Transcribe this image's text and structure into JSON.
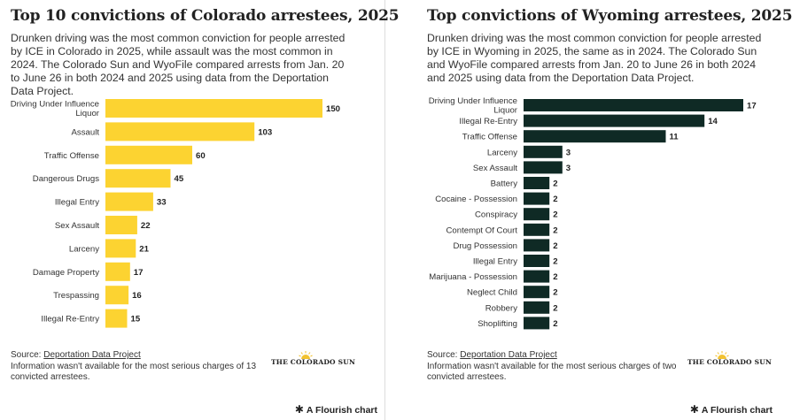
{
  "colorado": {
    "title": "Top 10 convictions of Colorado arrestees, 2025",
    "subtitle": "Drunken driving was the most common conviction for people arrested by ICE in Colorado in 2025, while assault was the most common in 2024. The Colorado Sun and WyoFile compared arrests from Jan. 20 to June 26 in both 2024 and 2025 using data from the Deportation Data Project.",
    "source_prefix": "Source: ",
    "source_link": "Deportation Data Project",
    "note": "Information wasn't available for the most serious charges of 13 convicted arrestees.",
    "logo": "THE COLORADO SUN",
    "flourish": "A Flourish chart",
    "star_icon": "✱"
  },
  "wyoming": {
    "title": "Top convictions of Wyoming arrestees, 2025",
    "subtitle": "Drunken driving was the most common conviction for people arrested by ICE in Wyoming in 2025, the same as in 2024. The Colorado Sun and WyoFile compared arrests from Jan. 20 to June 26 in both 2024 and 2025 using data from the Deportation Data Project.",
    "source_prefix": "Source: ",
    "source_link": "Deportation Data Project",
    "note": "Information wasn't available for the most serious charges of two convicted arrestees.",
    "logo": "THE COLORADO SUN",
    "flourish": "A Flourish chart",
    "star_icon": "✱"
  },
  "chart_data": [
    {
      "type": "bar",
      "orientation": "horizontal",
      "title": "Top 10 convictions of Colorado arrestees, 2025",
      "color": "#fcd331",
      "categories": [
        [
          "Driving Under Influence",
          "Liquor"
        ],
        [
          "Assault"
        ],
        [
          "Traffic Offense"
        ],
        [
          "Dangerous Drugs"
        ],
        [
          "Illegal Entry"
        ],
        [
          "Sex Assault"
        ],
        [
          "Larceny"
        ],
        [
          "Damage Property"
        ],
        [
          "Trespassing"
        ],
        [
          "Illegal Re-Entry"
        ]
      ],
      "values": [
        150,
        103,
        60,
        45,
        33,
        22,
        21,
        17,
        16,
        15
      ],
      "xlim": [
        0,
        150
      ]
    },
    {
      "type": "bar",
      "orientation": "horizontal",
      "title": "Top convictions of Wyoming arrestees, 2025",
      "color": "#0f2a25",
      "categories": [
        [
          "Driving Under Influence",
          "Liquor"
        ],
        [
          "Illegal Re-Entry"
        ],
        [
          "Traffic Offense"
        ],
        [
          "Larceny"
        ],
        [
          "Sex Assault"
        ],
        [
          "Battery"
        ],
        [
          "Cocaine - Possession"
        ],
        [
          "Conspiracy"
        ],
        [
          "Contempt Of Court"
        ],
        [
          "Drug Possession"
        ],
        [
          "Illegal Entry"
        ],
        [
          "Marijuana - Possession"
        ],
        [
          "Neglect Child"
        ],
        [
          "Robbery"
        ],
        [
          "Shoplifting"
        ]
      ],
      "values": [
        17,
        14,
        11,
        3,
        3,
        2,
        2,
        2,
        2,
        2,
        2,
        2,
        2,
        2,
        2
      ],
      "xlim": [
        0,
        17
      ]
    }
  ]
}
